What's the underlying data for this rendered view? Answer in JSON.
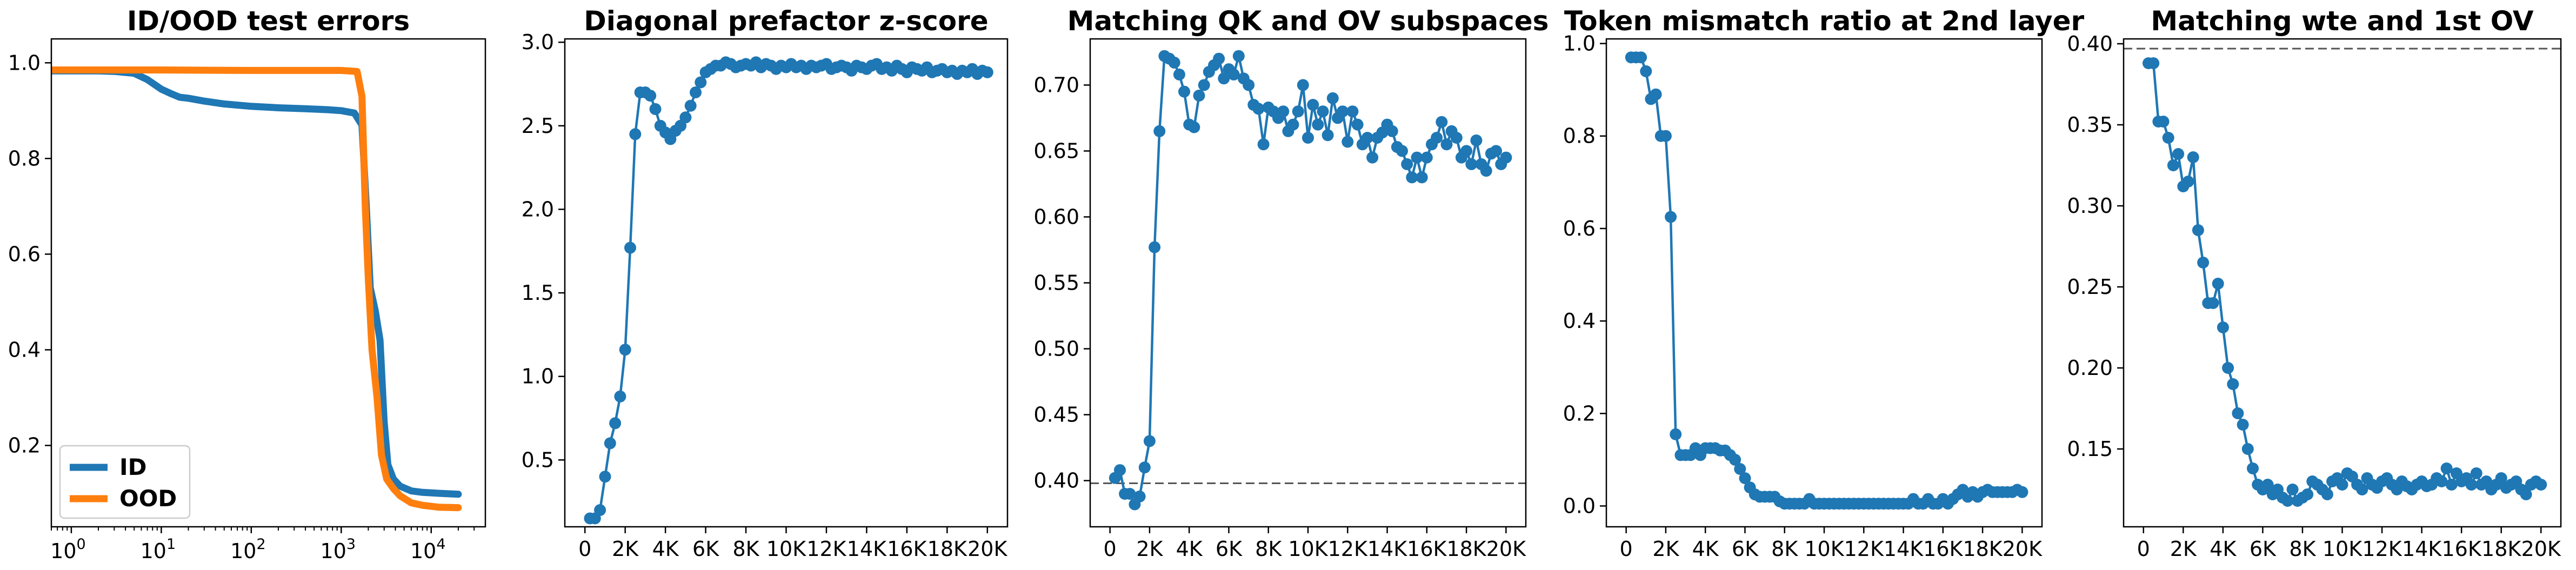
{
  "chart_data": [
    {
      "type": "line",
      "title": "ID/OOD test errors",
      "xscale": "log",
      "xlim": [
        0.6,
        40000
      ],
      "ylim": [
        0.03,
        1.05
      ],
      "xticks": [
        {
          "value": 1,
          "base": "10",
          "exp": "0"
        },
        {
          "value": 10,
          "base": "10",
          "exp": "1"
        },
        {
          "value": 100,
          "base": "10",
          "exp": "2"
        },
        {
          "value": 1000,
          "base": "10",
          "exp": "3"
        },
        {
          "value": 10000,
          "base": "10",
          "exp": "4"
        }
      ],
      "yticks": [
        {
          "value": 0.2,
          "label": "0.2"
        },
        {
          "value": 0.4,
          "label": "0.4"
        },
        {
          "value": 0.6,
          "label": "0.6"
        },
        {
          "value": 0.8,
          "label": "0.8"
        },
        {
          "value": 1.0,
          "label": "1.0"
        }
      ],
      "legend_position": "lower-left",
      "series": [
        {
          "name": "ID",
          "color": "#1f77b4",
          "points": [
            [
              0.6,
              0.983
            ],
            [
              1,
              0.983
            ],
            [
              2,
              0.983
            ],
            [
              3,
              0.982
            ],
            [
              5,
              0.978
            ],
            [
              7,
              0.965
            ],
            [
              10,
              0.945
            ],
            [
              13,
              0.935
            ],
            [
              16,
              0.928
            ],
            [
              20,
              0.926
            ],
            [
              30,
              0.92
            ],
            [
              50,
              0.914
            ],
            [
              100,
              0.909
            ],
            [
              200,
              0.906
            ],
            [
              400,
              0.904
            ],
            [
              700,
              0.902
            ],
            [
              1000,
              0.9
            ],
            [
              1400,
              0.895
            ],
            [
              1700,
              0.87
            ],
            [
              1900,
              0.7
            ],
            [
              2100,
              0.53
            ],
            [
              2400,
              0.48
            ],
            [
              2700,
              0.42
            ],
            [
              3000,
              0.25
            ],
            [
              3300,
              0.16
            ],
            [
              3800,
              0.13
            ],
            [
              4500,
              0.115
            ],
            [
              6000,
              0.105
            ],
            [
              8000,
              0.102
            ],
            [
              12000,
              0.1
            ],
            [
              20000,
              0.098
            ]
          ]
        },
        {
          "name": "OOD",
          "color": "#ff7f0e",
          "points": [
            [
              0.6,
              0.985
            ],
            [
              10,
              0.985
            ],
            [
              100,
              0.984
            ],
            [
              1000,
              0.984
            ],
            [
              1500,
              0.982
            ],
            [
              1700,
              0.93
            ],
            [
              1850,
              0.7
            ],
            [
              2000,
              0.55
            ],
            [
              2200,
              0.4
            ],
            [
              2500,
              0.3
            ],
            [
              2800,
              0.18
            ],
            [
              3200,
              0.13
            ],
            [
              3800,
              0.11
            ],
            [
              4500,
              0.095
            ],
            [
              6000,
              0.08
            ],
            [
              8000,
              0.075
            ],
            [
              12000,
              0.071
            ],
            [
              20000,
              0.07
            ]
          ]
        }
      ]
    },
    {
      "type": "line",
      "title": "Diagonal prefactor z-score",
      "xlim": [
        -1000,
        21000
      ],
      "ylim": [
        0.1,
        3.02
      ],
      "xticks": [
        "0",
        "2K",
        "4K",
        "6K",
        "8K",
        "10K",
        "12K",
        "14K",
        "16K",
        "18K",
        "20K"
      ],
      "xtick_values": [
        0,
        2000,
        4000,
        6000,
        8000,
        10000,
        12000,
        14000,
        16000,
        18000,
        20000
      ],
      "yticks": [
        {
          "value": 0.5,
          "label": "0.5"
        },
        {
          "value": 1.0,
          "label": "1.0"
        },
        {
          "value": 1.5,
          "label": "1.5"
        },
        {
          "value": 2.0,
          "label": "2.0"
        },
        {
          "value": 2.5,
          "label": "2.5"
        },
        {
          "value": 3.0,
          "label": "3.0"
        }
      ],
      "color": "#1f77b4",
      "x": [
        250,
        500,
        750,
        1000,
        1250,
        1500,
        1750,
        2000,
        2250,
        2500,
        2750,
        3000,
        3250,
        3500,
        3750,
        4000,
        4250,
        4500,
        4750,
        5000,
        5250,
        5500,
        5750,
        6000,
        6250,
        6500,
        6750,
        7000,
        7250,
        7500,
        7750,
        8000,
        8250,
        8500,
        8750,
        9000,
        9250,
        9500,
        9750,
        10000,
        10250,
        10500,
        10750,
        11000,
        11250,
        11500,
        11750,
        12000,
        12250,
        12500,
        12750,
        13000,
        13250,
        13500,
        13750,
        14000,
        14250,
        14500,
        14750,
        15000,
        15250,
        15500,
        15750,
        16000,
        16250,
        16500,
        16750,
        17000,
        17250,
        17500,
        17750,
        18000,
        18250,
        18500,
        18750,
        19000,
        19250,
        19500,
        19750,
        20000
      ],
      "y": [
        0.15,
        0.15,
        0.2,
        0.4,
        0.6,
        0.72,
        0.88,
        1.16,
        1.77,
        2.45,
        2.7,
        2.7,
        2.68,
        2.6,
        2.5,
        2.46,
        2.42,
        2.47,
        2.5,
        2.55,
        2.62,
        2.7,
        2.76,
        2.82,
        2.84,
        2.86,
        2.86,
        2.88,
        2.87,
        2.85,
        2.86,
        2.87,
        2.86,
        2.88,
        2.85,
        2.87,
        2.86,
        2.84,
        2.86,
        2.85,
        2.87,
        2.85,
        2.86,
        2.84,
        2.86,
        2.85,
        2.86,
        2.87,
        2.84,
        2.85,
        2.86,
        2.85,
        2.83,
        2.86,
        2.85,
        2.84,
        2.86,
        2.87,
        2.84,
        2.85,
        2.83,
        2.86,
        2.84,
        2.82,
        2.85,
        2.84,
        2.83,
        2.85,
        2.82,
        2.83,
        2.84,
        2.82,
        2.83,
        2.81,
        2.83,
        2.82,
        2.84,
        2.81,
        2.83,
        2.82
      ]
    },
    {
      "type": "line",
      "title": "Matching QK and OV subspaces",
      "xlim": [
        -1000,
        21000
      ],
      "ylim": [
        0.365,
        0.735
      ],
      "xticks": [
        "0",
        "2K",
        "4K",
        "6K",
        "8K",
        "10K",
        "12K",
        "14K",
        "16K",
        "18K",
        "20K"
      ],
      "xtick_values": [
        0,
        2000,
        4000,
        6000,
        8000,
        10000,
        12000,
        14000,
        16000,
        18000,
        20000
      ],
      "yticks": [
        {
          "value": 0.4,
          "label": "0.40"
        },
        {
          "value": 0.45,
          "label": "0.45"
        },
        {
          "value": 0.5,
          "label": "0.50"
        },
        {
          "value": 0.55,
          "label": "0.55"
        },
        {
          "value": 0.6,
          "label": "0.60"
        },
        {
          "value": 0.65,
          "label": "0.65"
        },
        {
          "value": 0.7,
          "label": "0.70"
        }
      ],
      "reference_line": {
        "y": 0.398,
        "style": "dashed",
        "color": "#555555"
      },
      "color": "#1f77b4",
      "x": [
        250,
        500,
        750,
        1000,
        1250,
        1500,
        1750,
        2000,
        2250,
        2500,
        2750,
        3000,
        3250,
        3500,
        3750,
        4000,
        4250,
        4500,
        4750,
        5000,
        5250,
        5500,
        5750,
        6000,
        6250,
        6500,
        6750,
        7000,
        7250,
        7500,
        7750,
        8000,
        8250,
        8500,
        8750,
        9000,
        9250,
        9500,
        9750,
        10000,
        10250,
        10500,
        10750,
        11000,
        11250,
        11500,
        11750,
        12000,
        12250,
        12500,
        12750,
        13000,
        13250,
        13500,
        13750,
        14000,
        14250,
        14500,
        14750,
        15000,
        15250,
        15500,
        15750,
        16000,
        16250,
        16500,
        16750,
        17000,
        17250,
        17500,
        17750,
        18000,
        18250,
        18500,
        18750,
        19000,
        19250,
        19500,
        19750,
        20000
      ],
      "y": [
        0.402,
        0.408,
        0.39,
        0.39,
        0.382,
        0.388,
        0.41,
        0.43,
        0.577,
        0.665,
        0.722,
        0.72,
        0.717,
        0.708,
        0.695,
        0.67,
        0.668,
        0.692,
        0.7,
        0.71,
        0.715,
        0.72,
        0.705,
        0.712,
        0.708,
        0.722,
        0.705,
        0.7,
        0.685,
        0.682,
        0.655,
        0.683,
        0.68,
        0.675,
        0.68,
        0.665,
        0.67,
        0.68,
        0.7,
        0.66,
        0.685,
        0.67,
        0.68,
        0.662,
        0.69,
        0.675,
        0.68,
        0.657,
        0.68,
        0.67,
        0.655,
        0.66,
        0.645,
        0.66,
        0.664,
        0.67,
        0.665,
        0.653,
        0.65,
        0.64,
        0.63,
        0.645,
        0.63,
        0.645,
        0.655,
        0.66,
        0.672,
        0.655,
        0.665,
        0.66,
        0.645,
        0.65,
        0.64,
        0.658,
        0.64,
        0.635,
        0.648,
        0.65,
        0.64,
        0.645
      ]
    },
    {
      "type": "line",
      "title": "Token mismatch ratio at 2nd layer",
      "xlim": [
        -1000,
        21000
      ],
      "ylim": [
        -0.045,
        1.01
      ],
      "xticks": [
        "0",
        "2K",
        "4K",
        "6K",
        "8K",
        "10K",
        "12K",
        "14K",
        "16K",
        "18K",
        "20K"
      ],
      "xtick_values": [
        0,
        2000,
        4000,
        6000,
        8000,
        10000,
        12000,
        14000,
        16000,
        18000,
        20000
      ],
      "yticks": [
        {
          "value": 0.0,
          "label": "0.0"
        },
        {
          "value": 0.2,
          "label": "0.2"
        },
        {
          "value": 0.4,
          "label": "0.4"
        },
        {
          "value": 0.6,
          "label": "0.6"
        },
        {
          "value": 0.8,
          "label": "0.8"
        },
        {
          "value": 1.0,
          "label": "1.0"
        }
      ],
      "color": "#1f77b4",
      "x": [
        250,
        500,
        750,
        1000,
        1250,
        1500,
        1750,
        2000,
        2250,
        2500,
        2750,
        3000,
        3250,
        3500,
        3750,
        4000,
        4250,
        4500,
        4750,
        5000,
        5250,
        5500,
        5750,
        6000,
        6250,
        6500,
        6750,
        7000,
        7250,
        7500,
        7750,
        8000,
        8250,
        8500,
        8750,
        9000,
        9250,
        9500,
        9750,
        10000,
        10250,
        10500,
        10750,
        11000,
        11250,
        11500,
        11750,
        12000,
        12250,
        12500,
        12750,
        13000,
        13250,
        13500,
        13750,
        14000,
        14250,
        14500,
        14750,
        15000,
        15250,
        15500,
        15750,
        16000,
        16250,
        16500,
        16750,
        17000,
        17250,
        17500,
        17750,
        18000,
        18250,
        18500,
        18750,
        19000,
        19250,
        19500,
        19750,
        20000
      ],
      "y": [
        0.97,
        0.97,
        0.97,
        0.94,
        0.88,
        0.89,
        0.8,
        0.8,
        0.625,
        0.155,
        0.11,
        0.11,
        0.11,
        0.125,
        0.11,
        0.125,
        0.125,
        0.125,
        0.12,
        0.12,
        0.11,
        0.1,
        0.08,
        0.06,
        0.04,
        0.025,
        0.02,
        0.02,
        0.02,
        0.02,
        0.01,
        0.005,
        0.005,
        0.005,
        0.005,
        0.005,
        0.015,
        0.005,
        0.005,
        0.005,
        0.005,
        0.005,
        0.005,
        0.005,
        0.005,
        0.005,
        0.005,
        0.005,
        0.005,
        0.005,
        0.005,
        0.005,
        0.005,
        0.005,
        0.005,
        0.005,
        0.005,
        0.015,
        0.005,
        0.005,
        0.015,
        0.005,
        0.005,
        0.015,
        0.005,
        0.015,
        0.025,
        0.035,
        0.02,
        0.03,
        0.02,
        0.03,
        0.035,
        0.03,
        0.03,
        0.03,
        0.03,
        0.03,
        0.035,
        0.03
      ]
    },
    {
      "type": "line",
      "title": "Matching wte and 1st OV",
      "xlim": [
        -1000,
        21000
      ],
      "ylim": [
        0.102,
        0.403
      ],
      "xticks": [
        "0",
        "2K",
        "4K",
        "6K",
        "8K",
        "10K",
        "12K",
        "14K",
        "16K",
        "18K",
        "20K"
      ],
      "xtick_values": [
        0,
        2000,
        4000,
        6000,
        8000,
        10000,
        12000,
        14000,
        16000,
        18000,
        20000
      ],
      "yticks": [
        {
          "value": 0.15,
          "label": "0.15"
        },
        {
          "value": 0.2,
          "label": "0.20"
        },
        {
          "value": 0.25,
          "label": "0.25"
        },
        {
          "value": 0.3,
          "label": "0.30"
        },
        {
          "value": 0.35,
          "label": "0.35"
        },
        {
          "value": 0.4,
          "label": "0.40"
        }
      ],
      "reference_line": {
        "y": 0.397,
        "style": "dashed",
        "color": "#555555"
      },
      "color": "#1f77b4",
      "x": [
        250,
        500,
        750,
        1000,
        1250,
        1500,
        1750,
        2000,
        2250,
        2500,
        2750,
        3000,
        3250,
        3500,
        3750,
        4000,
        4250,
        4500,
        4750,
        5000,
        5250,
        5500,
        5750,
        6000,
        6250,
        6500,
        6750,
        7000,
        7250,
        7500,
        7750,
        8000,
        8250,
        8500,
        8750,
        9000,
        9250,
        9500,
        9750,
        10000,
        10250,
        10500,
        10750,
        11000,
        11250,
        11500,
        11750,
        12000,
        12250,
        12500,
        12750,
        13000,
        13250,
        13500,
        13750,
        14000,
        14250,
        14500,
        14750,
        15000,
        15250,
        15500,
        15750,
        16000,
        16250,
        16500,
        16750,
        17000,
        17250,
        17500,
        17750,
        18000,
        18250,
        18500,
        18750,
        19000,
        19250,
        19500,
        19750,
        20000
      ],
      "y": [
        0.388,
        0.388,
        0.352,
        0.352,
        0.342,
        0.325,
        0.332,
        0.312,
        0.315,
        0.33,
        0.285,
        0.265,
        0.24,
        0.24,
        0.252,
        0.225,
        0.2,
        0.19,
        0.172,
        0.165,
        0.15,
        0.138,
        0.128,
        0.125,
        0.128,
        0.122,
        0.125,
        0.12,
        0.118,
        0.125,
        0.118,
        0.12,
        0.122,
        0.13,
        0.128,
        0.125,
        0.122,
        0.13,
        0.132,
        0.128,
        0.135,
        0.133,
        0.128,
        0.125,
        0.132,
        0.128,
        0.126,
        0.13,
        0.132,
        0.128,
        0.125,
        0.13,
        0.127,
        0.125,
        0.128,
        0.13,
        0.127,
        0.128,
        0.132,
        0.13,
        0.138,
        0.128,
        0.135,
        0.13,
        0.132,
        0.128,
        0.135,
        0.128,
        0.13,
        0.125,
        0.128,
        0.132,
        0.126,
        0.128,
        0.13,
        0.125,
        0.122,
        0.128,
        0.13,
        0.128
      ]
    }
  ]
}
